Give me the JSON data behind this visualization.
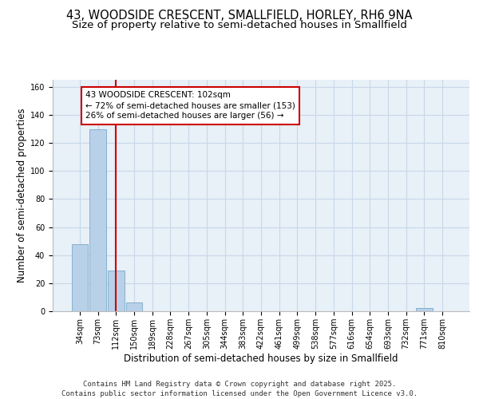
{
  "title_line1": "43, WOODSIDE CRESCENT, SMALLFIELD, HORLEY, RH6 9NA",
  "title_line2": "Size of property relative to semi-detached houses in Smallfield",
  "xlabel": "Distribution of semi-detached houses by size in Smallfield",
  "ylabel": "Number of semi-detached properties",
  "categories": [
    "34sqm",
    "73sqm",
    "112sqm",
    "150sqm",
    "189sqm",
    "228sqm",
    "267sqm",
    "305sqm",
    "344sqm",
    "383sqm",
    "422sqm",
    "461sqm",
    "499sqm",
    "538sqm",
    "577sqm",
    "616sqm",
    "654sqm",
    "693sqm",
    "732sqm",
    "771sqm",
    "810sqm"
  ],
  "values": [
    48,
    130,
    29,
    6,
    0,
    0,
    0,
    0,
    0,
    0,
    0,
    0,
    0,
    0,
    0,
    0,
    0,
    0,
    0,
    2,
    0
  ],
  "bar_color": "#b8d0e8",
  "bar_edge_color": "#7aaac8",
  "highlight_bar_index": 2,
  "highlight_line_color": "#cc0000",
  "annotation_text": "43 WOODSIDE CRESCENT: 102sqm\n← 72% of semi-detached houses are smaller (153)\n26% of semi-detached houses are larger (56) →",
  "annotation_box_color": "#cc0000",
  "annotation_text_color": "#000000",
  "ylim": [
    0,
    165
  ],
  "yticks": [
    0,
    20,
    40,
    60,
    80,
    100,
    120,
    140,
    160
  ],
  "grid_color": "#c8d8e8",
  "background_color": "#e8f0f8",
  "footer_text": "Contains HM Land Registry data © Crown copyright and database right 2025.\nContains public sector information licensed under the Open Government Licence v3.0.",
  "title_fontsize": 10.5,
  "subtitle_fontsize": 9.5,
  "axis_label_fontsize": 8.5,
  "tick_fontsize": 7,
  "annotation_fontsize": 7.5,
  "footer_fontsize": 6.5
}
